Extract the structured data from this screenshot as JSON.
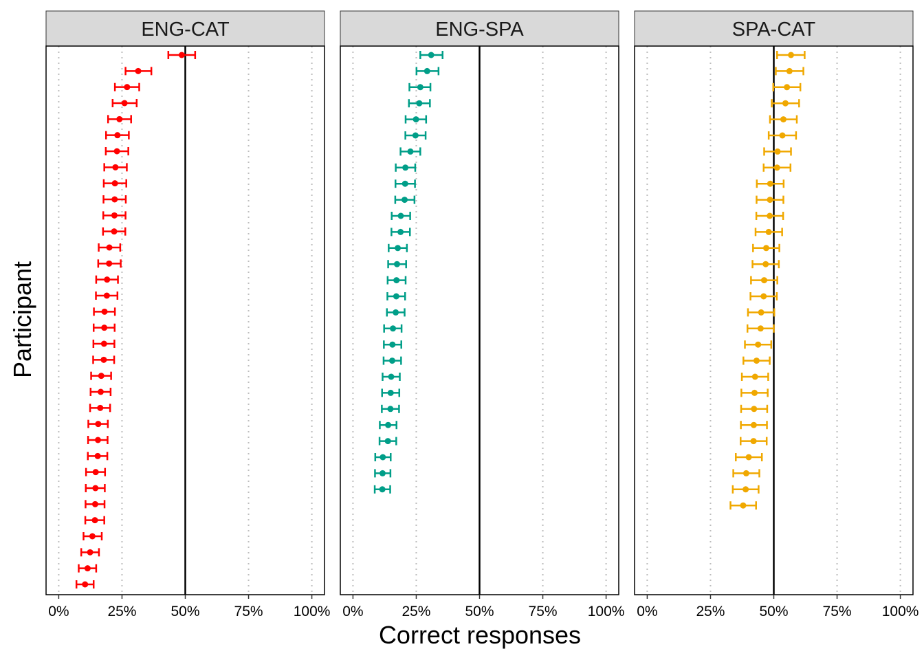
{
  "chart_data": {
    "type": "dot-errorbar-facet",
    "xlabel": "Correct responses",
    "ylabel": "Participant",
    "xlim": [
      -5,
      105
    ],
    "x_ticks": [
      0,
      25,
      50,
      75,
      100
    ],
    "x_tick_labels": [
      "0%",
      "25%",
      "50%",
      "75%",
      "100%"
    ],
    "reference_line": 50,
    "grid": "vertical dotted",
    "y_tick_labels_shown": false,
    "panels": [
      {
        "title": "ENG-CAT",
        "color": "#FF0000",
        "points": [
          {
            "x": 48.6,
            "lo": 43.3,
            "hi": 53.9
          },
          {
            "x": 31.4,
            "lo": 26.4,
            "hi": 36.6
          },
          {
            "x": 27.0,
            "lo": 22.2,
            "hi": 31.8
          },
          {
            "x": 26.0,
            "lo": 21.3,
            "hi": 30.8
          },
          {
            "x": 24.0,
            "lo": 19.5,
            "hi": 28.6
          },
          {
            "x": 23.2,
            "lo": 18.7,
            "hi": 27.7
          },
          {
            "x": 23.0,
            "lo": 18.6,
            "hi": 27.5
          },
          {
            "x": 22.4,
            "lo": 18.0,
            "hi": 26.9
          },
          {
            "x": 22.2,
            "lo": 17.8,
            "hi": 26.7
          },
          {
            "x": 22.1,
            "lo": 17.7,
            "hi": 26.5
          },
          {
            "x": 22.0,
            "lo": 17.6,
            "hi": 26.4
          },
          {
            "x": 21.9,
            "lo": 17.5,
            "hi": 26.3
          },
          {
            "x": 20.0,
            "lo": 15.8,
            "hi": 24.3
          },
          {
            "x": 19.9,
            "lo": 15.6,
            "hi": 24.5
          },
          {
            "x": 19.1,
            "lo": 14.8,
            "hi": 23.4
          },
          {
            "x": 19.0,
            "lo": 14.7,
            "hi": 23.2
          },
          {
            "x": 18.1,
            "lo": 13.9,
            "hi": 22.2
          },
          {
            "x": 18.0,
            "lo": 13.8,
            "hi": 22.1
          },
          {
            "x": 17.9,
            "lo": 13.7,
            "hi": 22.0
          },
          {
            "x": 17.8,
            "lo": 13.6,
            "hi": 21.9
          },
          {
            "x": 16.8,
            "lo": 12.8,
            "hi": 20.7
          },
          {
            "x": 16.6,
            "lo": 12.6,
            "hi": 20.5
          },
          {
            "x": 16.4,
            "lo": 12.4,
            "hi": 20.3
          },
          {
            "x": 15.6,
            "lo": 11.7,
            "hi": 19.4
          },
          {
            "x": 15.5,
            "lo": 11.6,
            "hi": 19.3
          },
          {
            "x": 15.4,
            "lo": 11.5,
            "hi": 19.2
          },
          {
            "x": 14.6,
            "lo": 10.8,
            "hi": 18.3
          },
          {
            "x": 14.5,
            "lo": 10.7,
            "hi": 18.2
          },
          {
            "x": 14.4,
            "lo": 10.6,
            "hi": 18.1
          },
          {
            "x": 14.3,
            "lo": 10.5,
            "hi": 18.0
          },
          {
            "x": 13.3,
            "lo": 9.8,
            "hi": 17.0
          },
          {
            "x": 12.4,
            "lo": 8.9,
            "hi": 15.9
          },
          {
            "x": 11.4,
            "lo": 7.9,
            "hi": 14.8
          },
          {
            "x": 10.4,
            "lo": 7.0,
            "hi": 13.8
          }
        ]
      },
      {
        "title": "ENG-SPA",
        "color": "#009E88",
        "points": [
          {
            "x": 30.9,
            "lo": 26.6,
            "hi": 35.4
          },
          {
            "x": 29.3,
            "lo": 25.1,
            "hi": 33.8
          },
          {
            "x": 26.6,
            "lo": 22.3,
            "hi": 30.6
          },
          {
            "x": 26.2,
            "lo": 22.1,
            "hi": 30.4
          },
          {
            "x": 24.9,
            "lo": 20.8,
            "hi": 28.9
          },
          {
            "x": 24.7,
            "lo": 20.7,
            "hi": 28.7
          },
          {
            "x": 22.7,
            "lo": 18.8,
            "hi": 26.6
          },
          {
            "x": 20.7,
            "lo": 16.9,
            "hi": 24.6
          },
          {
            "x": 20.6,
            "lo": 16.8,
            "hi": 24.5
          },
          {
            "x": 20.4,
            "lo": 16.7,
            "hi": 24.3
          },
          {
            "x": 18.9,
            "lo": 15.3,
            "hi": 22.6
          },
          {
            "x": 18.8,
            "lo": 15.2,
            "hi": 22.5
          },
          {
            "x": 17.7,
            "lo": 14.1,
            "hi": 21.3
          },
          {
            "x": 17.4,
            "lo": 13.9,
            "hi": 21.0
          },
          {
            "x": 17.2,
            "lo": 13.7,
            "hi": 20.8
          },
          {
            "x": 17.1,
            "lo": 13.6,
            "hi": 20.6
          },
          {
            "x": 16.9,
            "lo": 13.4,
            "hi": 20.4
          },
          {
            "x": 15.8,
            "lo": 12.3,
            "hi": 19.2
          },
          {
            "x": 15.6,
            "lo": 12.2,
            "hi": 19.1
          },
          {
            "x": 15.5,
            "lo": 12.1,
            "hi": 19.0
          },
          {
            "x": 15.1,
            "lo": 11.7,
            "hi": 18.5
          },
          {
            "x": 14.9,
            "lo": 11.5,
            "hi": 18.3
          },
          {
            "x": 14.8,
            "lo": 11.4,
            "hi": 18.2
          },
          {
            "x": 13.9,
            "lo": 10.6,
            "hi": 17.2
          },
          {
            "x": 13.8,
            "lo": 10.5,
            "hi": 17.1
          },
          {
            "x": 11.8,
            "lo": 8.8,
            "hi": 14.9
          },
          {
            "x": 11.7,
            "lo": 8.7,
            "hi": 14.8
          },
          {
            "x": 11.6,
            "lo": 8.6,
            "hi": 14.7
          }
        ]
      },
      {
        "title": "SPA-CAT",
        "color": "#F0A800",
        "points": [
          {
            "x": 56.8,
            "lo": 51.3,
            "hi": 62.2
          },
          {
            "x": 56.2,
            "lo": 50.8,
            "hi": 61.7
          },
          {
            "x": 55.2,
            "lo": 49.8,
            "hi": 60.5
          },
          {
            "x": 54.6,
            "lo": 49.2,
            "hi": 60.0
          },
          {
            "x": 53.8,
            "lo": 48.5,
            "hi": 59.1
          },
          {
            "x": 53.4,
            "lo": 48.0,
            "hi": 58.8
          },
          {
            "x": 51.5,
            "lo": 46.2,
            "hi": 56.8
          },
          {
            "x": 51.3,
            "lo": 46.0,
            "hi": 56.6
          },
          {
            "x": 48.6,
            "lo": 43.3,
            "hi": 53.9
          },
          {
            "x": 48.5,
            "lo": 43.2,
            "hi": 53.8
          },
          {
            "x": 48.4,
            "lo": 43.1,
            "hi": 53.7
          },
          {
            "x": 48.0,
            "lo": 42.8,
            "hi": 53.3
          },
          {
            "x": 47.0,
            "lo": 41.8,
            "hi": 52.2
          },
          {
            "x": 46.8,
            "lo": 41.6,
            "hi": 52.0
          },
          {
            "x": 46.2,
            "lo": 41.0,
            "hi": 51.4
          },
          {
            "x": 46.0,
            "lo": 40.8,
            "hi": 51.2
          },
          {
            "x": 45.0,
            "lo": 39.8,
            "hi": 50.2
          },
          {
            "x": 44.8,
            "lo": 39.6,
            "hi": 50.0
          },
          {
            "x": 43.8,
            "lo": 38.6,
            "hi": 49.0
          },
          {
            "x": 43.2,
            "lo": 38.0,
            "hi": 48.4
          },
          {
            "x": 42.6,
            "lo": 37.4,
            "hi": 47.8
          },
          {
            "x": 42.4,
            "lo": 37.2,
            "hi": 47.6
          },
          {
            "x": 42.2,
            "lo": 37.1,
            "hi": 47.4
          },
          {
            "x": 42.1,
            "lo": 37.0,
            "hi": 47.3
          },
          {
            "x": 42.0,
            "lo": 36.9,
            "hi": 47.2
          },
          {
            "x": 40.1,
            "lo": 35.0,
            "hi": 45.3
          },
          {
            "x": 39.1,
            "lo": 34.0,
            "hi": 44.3
          },
          {
            "x": 38.9,
            "lo": 33.8,
            "hi": 44.0
          },
          {
            "x": 37.9,
            "lo": 32.9,
            "hi": 43.0
          }
        ]
      }
    ]
  }
}
